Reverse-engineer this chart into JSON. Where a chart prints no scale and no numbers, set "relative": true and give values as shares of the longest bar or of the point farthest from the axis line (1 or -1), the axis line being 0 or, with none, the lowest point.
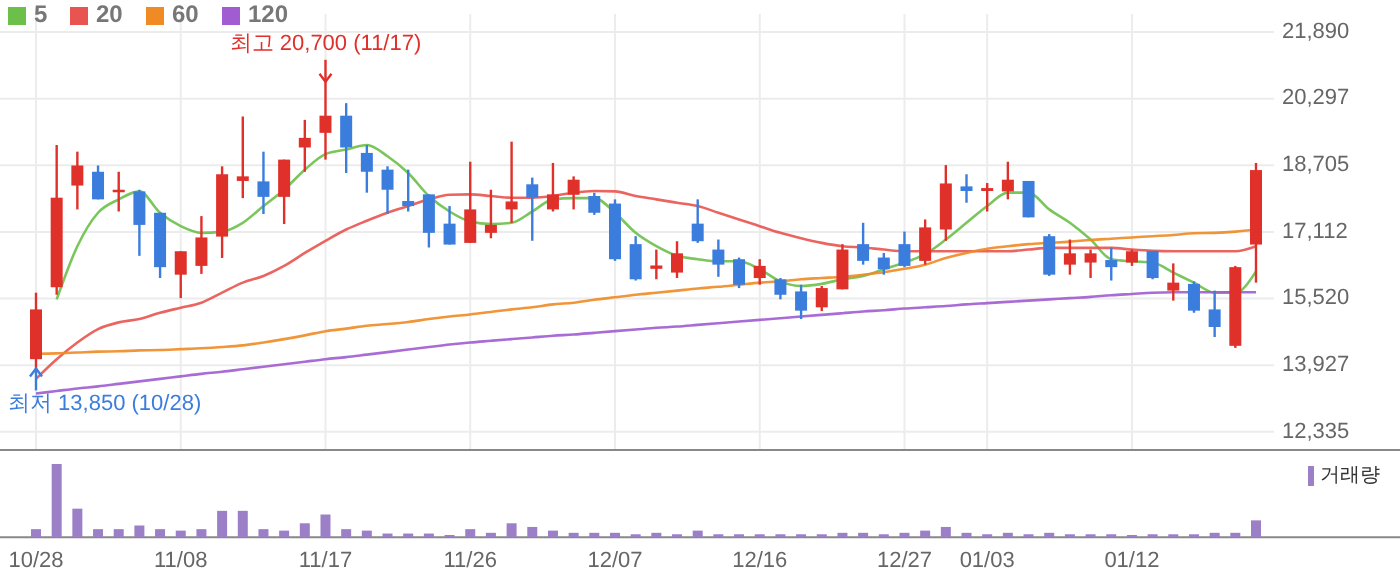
{
  "chart_data": [
    {
      "type": "candlestick",
      "legend": "top left",
      "grid": true,
      "tick_labels": "y",
      "categories": [
        null,
        null,
        null,
        null,
        null,
        null,
        null,
        null,
        null,
        null,
        null,
        null,
        null,
        null,
        null,
        null,
        null,
        null,
        null,
        null,
        null,
        null,
        null,
        null,
        null,
        null,
        null,
        null,
        null,
        null,
        null,
        null,
        null,
        null,
        null,
        null,
        null,
        null,
        null,
        null,
        null,
        null,
        null,
        null,
        null,
        null,
        null,
        null,
        null,
        null,
        null,
        null,
        null,
        null,
        null,
        null,
        null,
        null,
        null,
        null
      ],
      "ylim": [
        11900,
        21890
      ],
      "yticks": [
        {
          "value": 12335,
          "label": "12,335"
        },
        {
          "value": 13927,
          "label": "13,927"
        },
        {
          "value": 15520,
          "label": "15,520"
        },
        {
          "value": 17112,
          "label": "17,112"
        },
        {
          "value": 18705,
          "label": "18,705"
        },
        {
          "value": 20297,
          "label": "20,297"
        },
        {
          "value": 21890,
          "label": "21,890"
        }
      ],
      "ohlc": [
        [
          14070,
          15660,
          13850,
          15260
        ],
        [
          15790,
          19190,
          15610,
          17930
        ],
        [
          18220,
          19030,
          17650,
          18700
        ],
        [
          18550,
          18700,
          17890,
          17890
        ],
        [
          18060,
          18550,
          17600,
          18120
        ],
        [
          18080,
          18120,
          16540,
          17280
        ],
        [
          17570,
          17570,
          16010,
          16270
        ],
        [
          16090,
          16650,
          15530,
          16650
        ],
        [
          16300,
          17490,
          16110,
          16980
        ],
        [
          17000,
          18680,
          16490,
          18490
        ],
        [
          18330,
          19870,
          17920,
          18440
        ],
        [
          18320,
          19030,
          17540,
          17950
        ],
        [
          17950,
          18840,
          17300,
          18840
        ],
        [
          19130,
          19790,
          18550,
          19360
        ],
        [
          19480,
          20700,
          18840,
          19890
        ],
        [
          19890,
          20190,
          18520,
          19130
        ],
        [
          19000,
          19190,
          18050,
          18550
        ],
        [
          18600,
          18680,
          17540,
          18120
        ],
        [
          17850,
          18600,
          17600,
          17730
        ],
        [
          18010,
          18010,
          16740,
          17090
        ],
        [
          17310,
          17730,
          16810,
          16810
        ],
        [
          16850,
          18790,
          16850,
          17650
        ],
        [
          17090,
          18120,
          16960,
          17280
        ],
        [
          17650,
          19270,
          17330,
          17840
        ],
        [
          18250,
          18410,
          16900,
          17930
        ],
        [
          17650,
          18760,
          17600,
          18010
        ],
        [
          18000,
          18440,
          17650,
          18360
        ],
        [
          17970,
          18050,
          17520,
          17570
        ],
        [
          17790,
          17890,
          16420,
          16460
        ],
        [
          16820,
          17010,
          15950,
          15980
        ],
        [
          16230,
          16690,
          15980,
          16310
        ],
        [
          16140,
          16890,
          16010,
          16600
        ],
        [
          17310,
          17890,
          16850,
          16890
        ],
        [
          16690,
          16930,
          16040,
          16330
        ],
        [
          16460,
          16500,
          15770,
          15850
        ],
        [
          16010,
          16460,
          15850,
          16300
        ],
        [
          15980,
          16010,
          15500,
          15610
        ],
        [
          15690,
          15850,
          15030,
          15230
        ],
        [
          15310,
          15820,
          15220,
          15770
        ],
        [
          15740,
          16820,
          15740,
          16690
        ],
        [
          16820,
          17330,
          16330,
          16420
        ],
        [
          16500,
          16610,
          16090,
          16220
        ],
        [
          16820,
          17120,
          16270,
          16300
        ],
        [
          16420,
          17410,
          16330,
          17220
        ],
        [
          17170,
          18710,
          16900,
          18270
        ],
        [
          18200,
          18490,
          17810,
          18090
        ],
        [
          18090,
          18280,
          17600,
          18160
        ],
        [
          18080,
          18790,
          17890,
          18360
        ],
        [
          18330,
          18330,
          17460,
          17460
        ],
        [
          17010,
          17060,
          16060,
          16090
        ],
        [
          16330,
          16930,
          16090,
          16600
        ],
        [
          16380,
          16690,
          16010,
          16600
        ],
        [
          16440,
          16740,
          15950,
          16270
        ],
        [
          16380,
          16690,
          16300,
          16650
        ],
        [
          16660,
          16660,
          15980,
          16010
        ],
        [
          15710,
          16360,
          15470,
          15900
        ],
        [
          15870,
          15930,
          15180,
          15230
        ],
        [
          15260,
          15710,
          14600,
          14840
        ],
        [
          14390,
          16300,
          14340,
          16270
        ],
        [
          16810,
          18760,
          15900,
          18590
        ]
      ],
      "series": [
        {
          "name": "5",
          "type": "line",
          "color": "#6cc04a",
          "values": [
            null,
            15500,
            16770,
            17570,
            17890,
            18080,
            17570,
            17250,
            17090,
            17120,
            17330,
            17730,
            18120,
            18600,
            18970,
            19080,
            19190,
            18920,
            18520,
            17970,
            17600,
            17360,
            17300,
            17330,
            17600,
            17890,
            17920,
            17920,
            17570,
            17090,
            16770,
            16540,
            16460,
            16410,
            16410,
            16220,
            15930,
            15820,
            15870,
            15980,
            16060,
            16220,
            16380,
            16580,
            16930,
            17330,
            17730,
            18050,
            18050,
            17650,
            17330,
            16930,
            16460,
            16410,
            16380,
            16140,
            15900,
            15660,
            15660,
            16170
          ]
        },
        {
          "name": "20",
          "type": "line",
          "color": "#e8544f",
          "values": [
            13600,
            14070,
            14470,
            14790,
            14950,
            15030,
            15180,
            15300,
            15420,
            15660,
            15900,
            16060,
            16300,
            16610,
            16900,
            17170,
            17380,
            17570,
            17730,
            17890,
            18000,
            18010,
            17970,
            17930,
            17930,
            17970,
            18050,
            18090,
            18080,
            17970,
            17890,
            17810,
            17730,
            17570,
            17410,
            17250,
            17090,
            16960,
            16850,
            16770,
            16740,
            16690,
            16650,
            16650,
            16650,
            16650,
            16650,
            16650,
            16690,
            16730,
            16730,
            16730,
            16730,
            16690,
            16660,
            16650,
            16650,
            16650,
            16650,
            16770
          ]
        },
        {
          "name": "60",
          "type": "line",
          "color": "#f08a24",
          "values": [
            14200,
            14210,
            14230,
            14250,
            14260,
            14280,
            14290,
            14310,
            14330,
            14360,
            14400,
            14470,
            14550,
            14640,
            14740,
            14800,
            14870,
            14910,
            14960,
            15030,
            15090,
            15140,
            15200,
            15260,
            15310,
            15380,
            15420,
            15490,
            15550,
            15610,
            15660,
            15710,
            15760,
            15800,
            15850,
            15900,
            15930,
            15980,
            16010,
            16040,
            16090,
            16150,
            16230,
            16330,
            16490,
            16610,
            16710,
            16770,
            16820,
            16850,
            16880,
            16920,
            16950,
            16980,
            17010,
            17040,
            17080,
            17090,
            17120,
            17170
          ]
        },
        {
          "name": "120",
          "type": "line",
          "color": "#a05cd0",
          "values": [
            13250,
            13310,
            13370,
            13420,
            13480,
            13540,
            13600,
            13660,
            13720,
            13770,
            13830,
            13890,
            13950,
            14010,
            14070,
            14120,
            14180,
            14240,
            14300,
            14360,
            14420,
            14470,
            14510,
            14550,
            14590,
            14630,
            14660,
            14700,
            14740,
            14780,
            14820,
            14850,
            14890,
            14930,
            14970,
            15010,
            15050,
            15090,
            15130,
            15170,
            15210,
            15240,
            15280,
            15310,
            15340,
            15380,
            15410,
            15440,
            15470,
            15500,
            15530,
            15560,
            15600,
            15630,
            15660,
            15670,
            15670,
            15670,
            15670,
            15670
          ]
        }
      ],
      "annotations": [
        "최고 20,700 (11/17)",
        "최저 13,850 (10/28)"
      ]
    },
    {
      "type": "bar",
      "relative": true,
      "legend": "top right",
      "tick_labels": "x",
      "categories": [
        "10/28",
        null,
        null,
        null,
        null,
        null,
        null,
        "11/08",
        null,
        null,
        null,
        null,
        null,
        null,
        "11/17",
        null,
        null,
        null,
        null,
        null,
        null,
        "11/26",
        null,
        null,
        null,
        null,
        null,
        null,
        "12/07",
        null,
        null,
        null,
        null,
        null,
        null,
        "12/16",
        null,
        null,
        null,
        null,
        null,
        null,
        "12/27",
        null,
        null,
        null,
        "01/03",
        null,
        null,
        null,
        null,
        null,
        null,
        "01/12",
        null,
        null,
        null,
        null,
        null,
        null
      ],
      "series": [
        {
          "name": "거래량",
          "color": "#9b80c8",
          "values": [
            0.11,
            1,
            0.39,
            0.11,
            0.11,
            0.16,
            0.11,
            0.09,
            0.11,
            0.36,
            0.36,
            0.11,
            0.09,
            0.19,
            0.31,
            0.11,
            0.09,
            0.05,
            0.05,
            0.05,
            0.03,
            0.11,
            0.06,
            0.19,
            0.14,
            0.09,
            0.06,
            0.06,
            0.06,
            0.04,
            0.06,
            0.04,
            0.09,
            0.04,
            0.04,
            0.04,
            0.04,
            0.04,
            0.04,
            0.06,
            0.06,
            0.04,
            0.06,
            0.09,
            0.14,
            0.06,
            0.04,
            0.06,
            0.04,
            0.06,
            0.04,
            0.04,
            0.04,
            0.03,
            0.04,
            0.04,
            0.04,
            0.06,
            0.06,
            0.23
          ]
        }
      ]
    }
  ]
}
